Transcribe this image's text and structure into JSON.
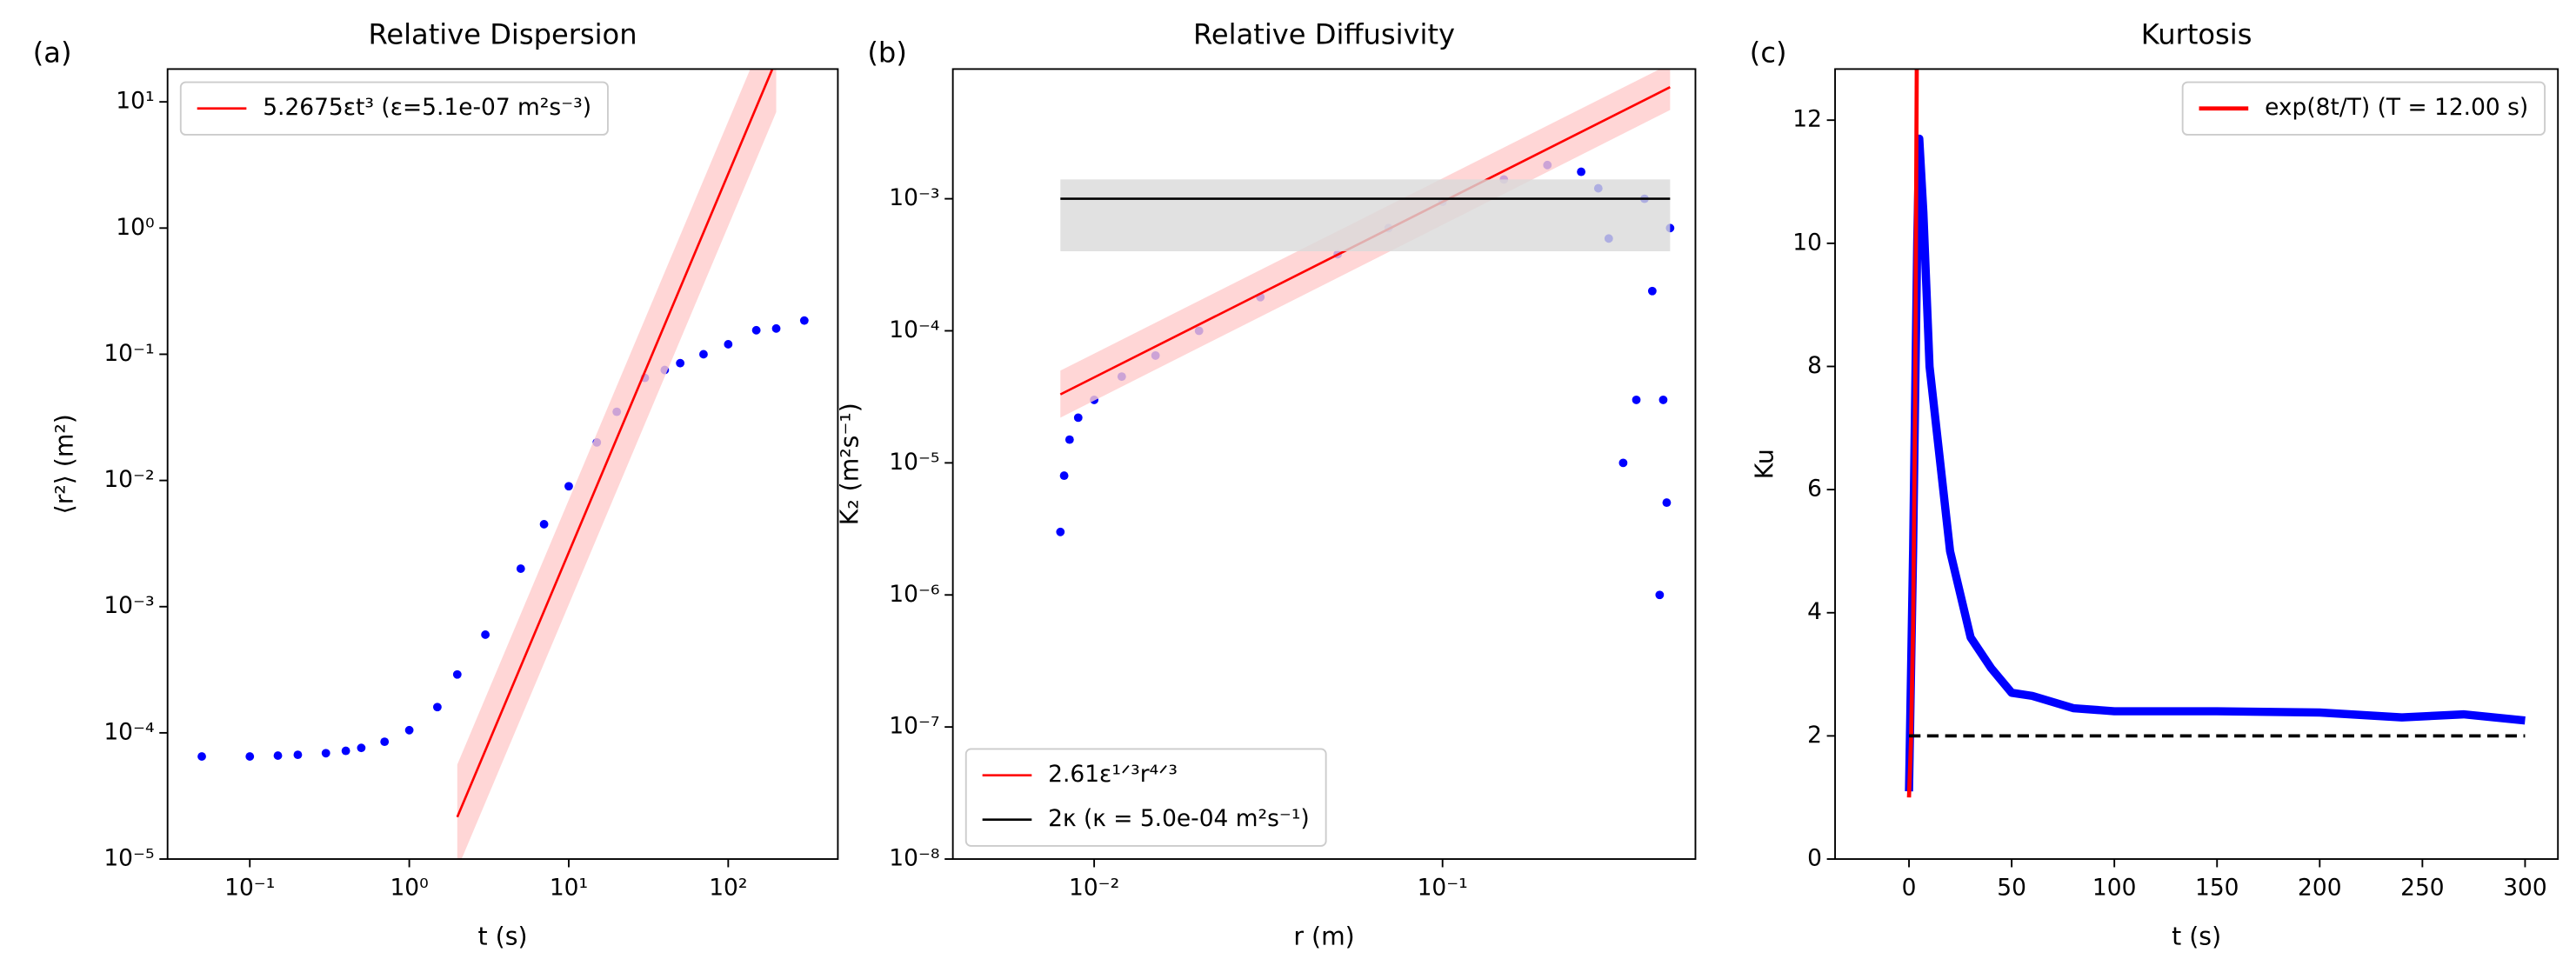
{
  "chart_data": [
    {
      "type": "scatter",
      "panel_label": "(a)",
      "title": "Relative Dispersion",
      "xlabel": "t (s)",
      "ylabel": "⟨r²⟩ (m²)",
      "xscale": "log",
      "yscale": "log",
      "xlim": [
        0.0305,
        487
      ],
      "ylim": [
        1e-05,
        18.2
      ],
      "xticks": [
        {
          "value": 0.1,
          "label": "10⁻¹"
        },
        {
          "value": 1,
          "label": "10⁰"
        },
        {
          "value": 10,
          "label": "10¹"
        },
        {
          "value": 100,
          "label": "10²"
        }
      ],
      "yticks": [
        {
          "value": 1e-05,
          "label": "10⁻⁵"
        },
        {
          "value": 0.0001,
          "label": "10⁻⁴"
        },
        {
          "value": 0.001,
          "label": "10⁻³"
        },
        {
          "value": 0.01,
          "label": "10⁻²"
        },
        {
          "value": 0.1,
          "label": "10⁻¹"
        },
        {
          "value": 1,
          "label": "10⁰"
        },
        {
          "value": 10,
          "label": "10¹"
        }
      ],
      "legend": "upper left",
      "series": [
        {
          "style": "scatter",
          "color": "#0000ff",
          "x": [
            0.05,
            0.1,
            0.15,
            0.2,
            0.3,
            0.4,
            0.5,
            0.7,
            1,
            1.5,
            2,
            3,
            5,
            7,
            10,
            15,
            20,
            30,
            40,
            50,
            70,
            100,
            150,
            200,
            300
          ],
          "values": [
            6.5e-05,
            6.5e-05,
            6.6e-05,
            6.7e-05,
            6.9e-05,
            7.2e-05,
            7.6e-05,
            8.5e-05,
            0.000105,
            0.00016,
            0.00029,
            0.0006,
            0.002,
            0.0045,
            0.009,
            0.02,
            0.035,
            0.065,
            0.075,
            0.085,
            0.1,
            0.12,
            0.155,
            0.16,
            0.185
          ]
        },
        {
          "style": "line",
          "name": "5.2675εt³ (ε=5.1e-07 m²s⁻³)",
          "color": "#ff0000",
          "x": [
            2,
            200
          ],
          "values": [
            2.15e-05,
            21.5
          ],
          "band": {
            "color": "#ffcccc",
            "lower": [
              8.3e-06,
              8.3
            ],
            "upper": [
              5.6e-05,
              56
            ]
          }
        }
      ]
    },
    {
      "type": "scatter",
      "panel_label": "(b)",
      "title": "Relative Diffusivity",
      "xlabel": "r (m)",
      "ylabel": "K₂ (m²s⁻¹)",
      "xscale": "log",
      "yscale": "log",
      "xlim": [
        0.00393,
        0.532
      ],
      "ylim": [
        1e-08,
        0.0096
      ],
      "xticks": [
        {
          "value": 0.01,
          "label": "10⁻²"
        },
        {
          "value": 0.1,
          "label": "10⁻¹"
        }
      ],
      "yticks": [
        {
          "value": 1e-08,
          "label": "10⁻⁸"
        },
        {
          "value": 1e-07,
          "label": "10⁻⁷"
        },
        {
          "value": 1e-06,
          "label": "10⁻⁶"
        },
        {
          "value": 1e-05,
          "label": "10⁻⁵"
        },
        {
          "value": 0.0001,
          "label": "10⁻⁴"
        },
        {
          "value": 0.001,
          "label": "10⁻³"
        }
      ],
      "legend": "lower left",
      "series": [
        {
          "style": "scatter",
          "color": "#0000ff",
          "x": [
            0.008,
            0.0082,
            0.0085,
            0.009,
            0.01,
            0.012,
            0.015,
            0.02,
            0.03,
            0.05,
            0.07,
            0.1,
            0.15,
            0.2,
            0.25,
            0.28,
            0.3,
            0.33,
            0.36,
            0.38,
            0.4,
            0.42,
            0.43,
            0.44,
            0.45
          ],
          "values": [
            3e-06,
            8e-06,
            1.5e-05,
            2.2e-05,
            3e-05,
            4.5e-05,
            6.5e-05,
            0.0001,
            0.00018,
            0.00038,
            0.0006,
            0.00095,
            0.0014,
            0.0018,
            0.0016,
            0.0012,
            0.0005,
            1e-05,
            3e-05,
            0.001,
            0.0002,
            1e-06,
            3e-05,
            5e-06,
            0.0006
          ]
        },
        {
          "style": "line",
          "name": "2.61ε¹ᐟ³r⁴ᐟ³",
          "color": "#ff0000",
          "x": [
            0.008,
            0.45
          ],
          "values": [
            3.3e-05,
            0.007
          ],
          "band": {
            "color": "#ffcccc",
            "lower": [
              2.2e-05,
              0.0047
            ],
            "upper": [
              5e-05,
              0.0105
            ]
          }
        },
        {
          "style": "line",
          "name": "2κ (κ = 5.0e-04 m²s⁻¹)",
          "color": "#000000",
          "x": [
            0.008,
            0.45
          ],
          "values": [
            0.001,
            0.001
          ],
          "band": {
            "color": "#d9d9d9",
            "lower": [
              0.0004,
              0.0004
            ],
            "upper": [
              0.0014,
              0.0014
            ]
          }
        }
      ]
    },
    {
      "type": "line",
      "panel_label": "(c)",
      "title": "Kurtosis",
      "xlabel": "t (s)",
      "ylabel": "Ku",
      "xscale": "linear",
      "yscale": "linear",
      "xlim": [
        -36,
        316
      ],
      "ylim": [
        0,
        12.83
      ],
      "xticks": [
        0,
        50,
        100,
        150,
        200,
        250,
        300
      ],
      "yticks": [
        0,
        2,
        4,
        6,
        8,
        10,
        12
      ],
      "legend": "upper right",
      "series": [
        {
          "style": "thick",
          "color": "#0000ff",
          "x": [
            0,
            2,
            4,
            5,
            7,
            10,
            15,
            20,
            30,
            40,
            50,
            60,
            80,
            100,
            150,
            200,
            240,
            270,
            300
          ],
          "values": [
            1.1,
            5,
            10,
            11.7,
            10.5,
            8,
            6.5,
            5,
            3.6,
            3.1,
            2.7,
            2.65,
            2.45,
            2.4,
            2.4,
            2.38,
            2.3,
            2.35,
            2.25
          ]
        },
        {
          "style": "line",
          "name": "exp(8t/T) (T = 12.00 s)",
          "color": "#ff0000",
          "x": [
            0,
            1,
            2,
            3,
            4
          ],
          "values": [
            1,
            1.95,
            3.79,
            7.39,
            14.4
          ]
        },
        {
          "style": "dashed",
          "color": "#000000",
          "x": [
            0,
            300
          ],
          "values": [
            2,
            2
          ]
        }
      ]
    }
  ]
}
